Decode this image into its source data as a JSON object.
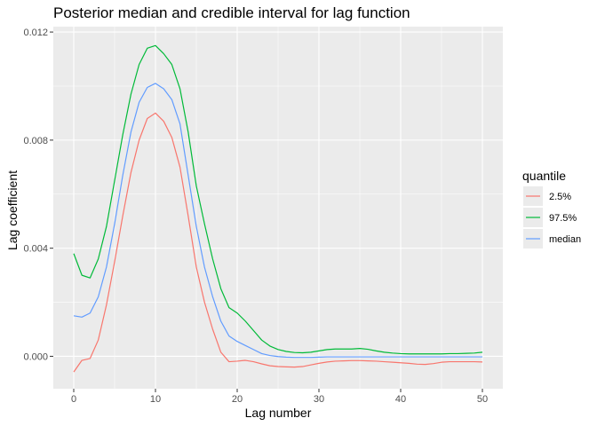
{
  "chart_data": {
    "type": "line",
    "title": "Posterior median and credible interval for lag function",
    "xlabel": "Lag number",
    "ylabel": "Lag coefficient",
    "xlim": [
      -2.5,
      52.5
    ],
    "ylim": [
      -0.0012,
      0.0122
    ],
    "x_ticks": [
      0,
      10,
      20,
      30,
      40,
      50
    ],
    "x_tick_labels": [
      "0",
      "10",
      "20",
      "30",
      "40",
      "50"
    ],
    "y_ticks": [
      0.0,
      0.004,
      0.008,
      0.012
    ],
    "y_tick_labels": [
      "0.000",
      "0.004",
      "0.008",
      "0.012"
    ],
    "grid": true,
    "legend": {
      "title": "quantile",
      "position": "right"
    },
    "x": [
      0,
      1,
      2,
      3,
      4,
      5,
      6,
      7,
      8,
      9,
      10,
      11,
      12,
      13,
      14,
      15,
      16,
      17,
      18,
      19,
      20,
      21,
      22,
      23,
      24,
      25,
      26,
      27,
      28,
      29,
      30,
      31,
      32,
      33,
      34,
      35,
      36,
      37,
      38,
      39,
      40,
      41,
      42,
      43,
      44,
      45,
      46,
      47,
      48,
      49,
      50
    ],
    "series": [
      {
        "name": "2.5%",
        "color": "#f8766d",
        "values": [
          -0.00058,
          -0.00015,
          -8e-05,
          0.0006,
          0.0019,
          0.0035,
          0.0052,
          0.0068,
          0.008,
          0.0088,
          0.009,
          0.0087,
          0.0081,
          0.007,
          0.0052,
          0.0033,
          0.002,
          0.001,
          0.00015,
          -0.0002,
          -0.00018,
          -0.00015,
          -0.0002,
          -0.00028,
          -0.00035,
          -0.00038,
          -0.00039,
          -0.0004,
          -0.00038,
          -0.00032,
          -0.00026,
          -0.00021,
          -0.00018,
          -0.00017,
          -0.00016,
          -0.00016,
          -0.00017,
          -0.00018,
          -0.0002,
          -0.00022,
          -0.00024,
          -0.00026,
          -0.00029,
          -0.0003,
          -0.00027,
          -0.00022,
          -0.0002,
          -0.0002,
          -0.0002,
          -0.0002,
          -0.00021
        ]
      },
      {
        "name": "97.5%",
        "color": "#00ba38",
        "values": [
          0.0038,
          0.003,
          0.0029,
          0.0036,
          0.0048,
          0.0065,
          0.0082,
          0.0097,
          0.0108,
          0.0114,
          0.0115,
          0.0112,
          0.0108,
          0.0099,
          0.0083,
          0.0063,
          0.0049,
          0.0036,
          0.0025,
          0.0018,
          0.0016,
          0.0013,
          0.00095,
          0.0006,
          0.00038,
          0.00025,
          0.00018,
          0.00014,
          0.00013,
          0.00015,
          0.0002,
          0.00025,
          0.00027,
          0.00027,
          0.00027,
          0.00029,
          0.00026,
          0.0002,
          0.00015,
          0.00012,
          0.0001,
          9e-05,
          9e-05,
          9e-05,
          9e-05,
          9e-05,
          0.0001,
          0.0001,
          0.00011,
          0.00012,
          0.00015
        ]
      },
      {
        "name": "median",
        "color": "#619cff",
        "values": [
          0.0015,
          0.00145,
          0.0016,
          0.0022,
          0.0033,
          0.0049,
          0.0067,
          0.0083,
          0.0094,
          0.00995,
          0.0101,
          0.0099,
          0.0095,
          0.0086,
          0.0067,
          0.0048,
          0.0033,
          0.0022,
          0.0013,
          0.00075,
          0.00055,
          0.0004,
          0.00025,
          0.0001,
          3e-05,
          -1e-05,
          -3e-05,
          -4e-05,
          -4e-05,
          -4e-05,
          -3e-05,
          -2e-05,
          -2e-05,
          -2e-05,
          -2e-05,
          -2e-05,
          -2e-05,
          -2e-05,
          -2e-05,
          -2e-05,
          -2e-05,
          -2e-05,
          -2e-05,
          -2e-05,
          -2e-05,
          -2e-05,
          -2e-05,
          -2e-05,
          -2e-05,
          -2e-05,
          -2e-05
        ]
      }
    ]
  }
}
